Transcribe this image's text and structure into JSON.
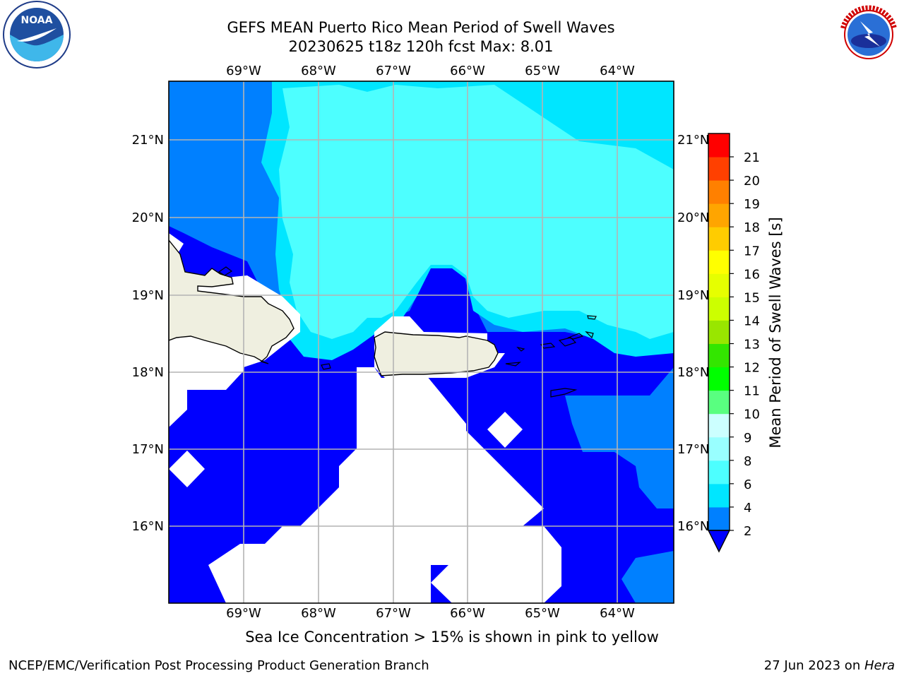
{
  "title": {
    "line1": "GEFS MEAN Puerto Rico Mean Period of Swell Waves",
    "line2": "20230625 t18z 120h fcst   Max: 8.01"
  },
  "logos": {
    "left": {
      "icon": "noaa-logo",
      "text": "NOAA"
    },
    "right": {
      "icon": "nws-logo",
      "text": "NATIONAL WEATHER SERVICE"
    }
  },
  "map": {
    "lon_labels": [
      "69°W",
      "68°W",
      "67°W",
      "66°W",
      "65°W",
      "64°W"
    ],
    "lat_labels_left": [
      "21°N",
      "20°N",
      "19°N",
      "18°N",
      "17°N",
      "16°N"
    ],
    "lat_labels_right": [
      "21°N",
      "20°N",
      "19°N",
      "18°N",
      "17°N",
      "16°N"
    ],
    "colors": {
      "land": "#efefe0",
      "gridline": "#b4b4b4",
      "coast": "#000000"
    }
  },
  "colorbar": {
    "label": "Mean Period of Swell Waves [s]",
    "ticks": [
      "2",
      "4",
      "6",
      "8",
      "9",
      "10",
      "11",
      "12",
      "13",
      "14",
      "15",
      "16",
      "17",
      "18",
      "19",
      "20",
      "21"
    ],
    "colors": [
      "#0080ff",
      "#00e6ff",
      "#4dffff",
      "#99ffff",
      "#ccffff",
      "#59ff80",
      "#00ff00",
      "#33e600",
      "#99e600",
      "#ccff00",
      "#e6ff00",
      "#ffff00",
      "#ffcc00",
      "#ffa500",
      "#ff8000",
      "#ff4000",
      "#ff0000"
    ],
    "under_color": "#0000ff"
  },
  "footer": {
    "note": "Sea Ice Concentration > 15% is shown in pink to yellow",
    "left": "NCEP/EMC/Verification Post Processing Product Generation Branch",
    "right_date": "27 Jun 2023 on ",
    "right_host": "Hera"
  }
}
